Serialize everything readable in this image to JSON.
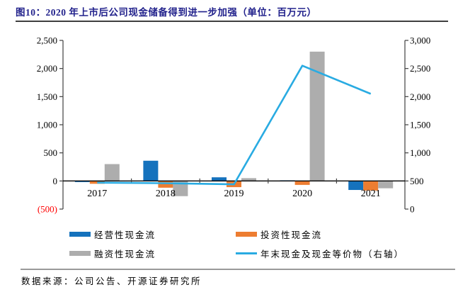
{
  "header": {
    "title": "图10：2020 年上市后公司现金储备得到进一步加强（单位：百万元）",
    "title_color": "#22228C",
    "rule_color": "#3F3F3F"
  },
  "footer": {
    "source": "数据来源：公司公告、开源证券研究所",
    "rule_color": "#9A9A9A"
  },
  "chart_data": {
    "type": "bar",
    "subtype": "grouped-bar-with-line-combo",
    "title": "2020 年上市后公司现金储备得到进一步加强（单位：百万元）",
    "categories": [
      "2017",
      "2018",
      "2019",
      "2020",
      "2021"
    ],
    "series": [
      {
        "key": "operating",
        "name": "经营性现金流",
        "type": "bar",
        "axis": "left",
        "color": "#1572BD",
        "values": [
          -20,
          360,
          65,
          5,
          -160
        ]
      },
      {
        "key": "investing",
        "name": "投资性现金流",
        "type": "bar",
        "axis": "left",
        "color": "#ED7D31",
        "values": [
          -50,
          -120,
          -110,
          -70,
          -170
        ]
      },
      {
        "key": "financing",
        "name": "融资性现金流",
        "type": "bar",
        "axis": "left",
        "color": "#ADADAD",
        "values": [
          300,
          -270,
          50,
          2300,
          -130
        ]
      },
      {
        "key": "cash-line",
        "name": "年末现金及现金等价物（右轴）",
        "type": "line",
        "axis": "right",
        "color": "#29ABE2",
        "values": [
          470,
          460,
          440,
          2550,
          2050
        ]
      }
    ],
    "left_axis": {
      "min": -500,
      "max": 2500,
      "step": 500,
      "tick_labels": [
        "2,500",
        "2,000",
        "1,500",
        "1,000",
        "500",
        "0",
        "(500)"
      ],
      "negative_label_color": "#FF0000"
    },
    "right_axis": {
      "min": 0,
      "max": 3000,
      "step": 500,
      "tick_labels": [
        "3,000",
        "2,500",
        "2,000",
        "1,500",
        "1,000",
        "500",
        "0"
      ]
    },
    "grid": false,
    "legend_position": "bottom",
    "axis_color": "#404040",
    "tick_label_color": "#000000"
  }
}
